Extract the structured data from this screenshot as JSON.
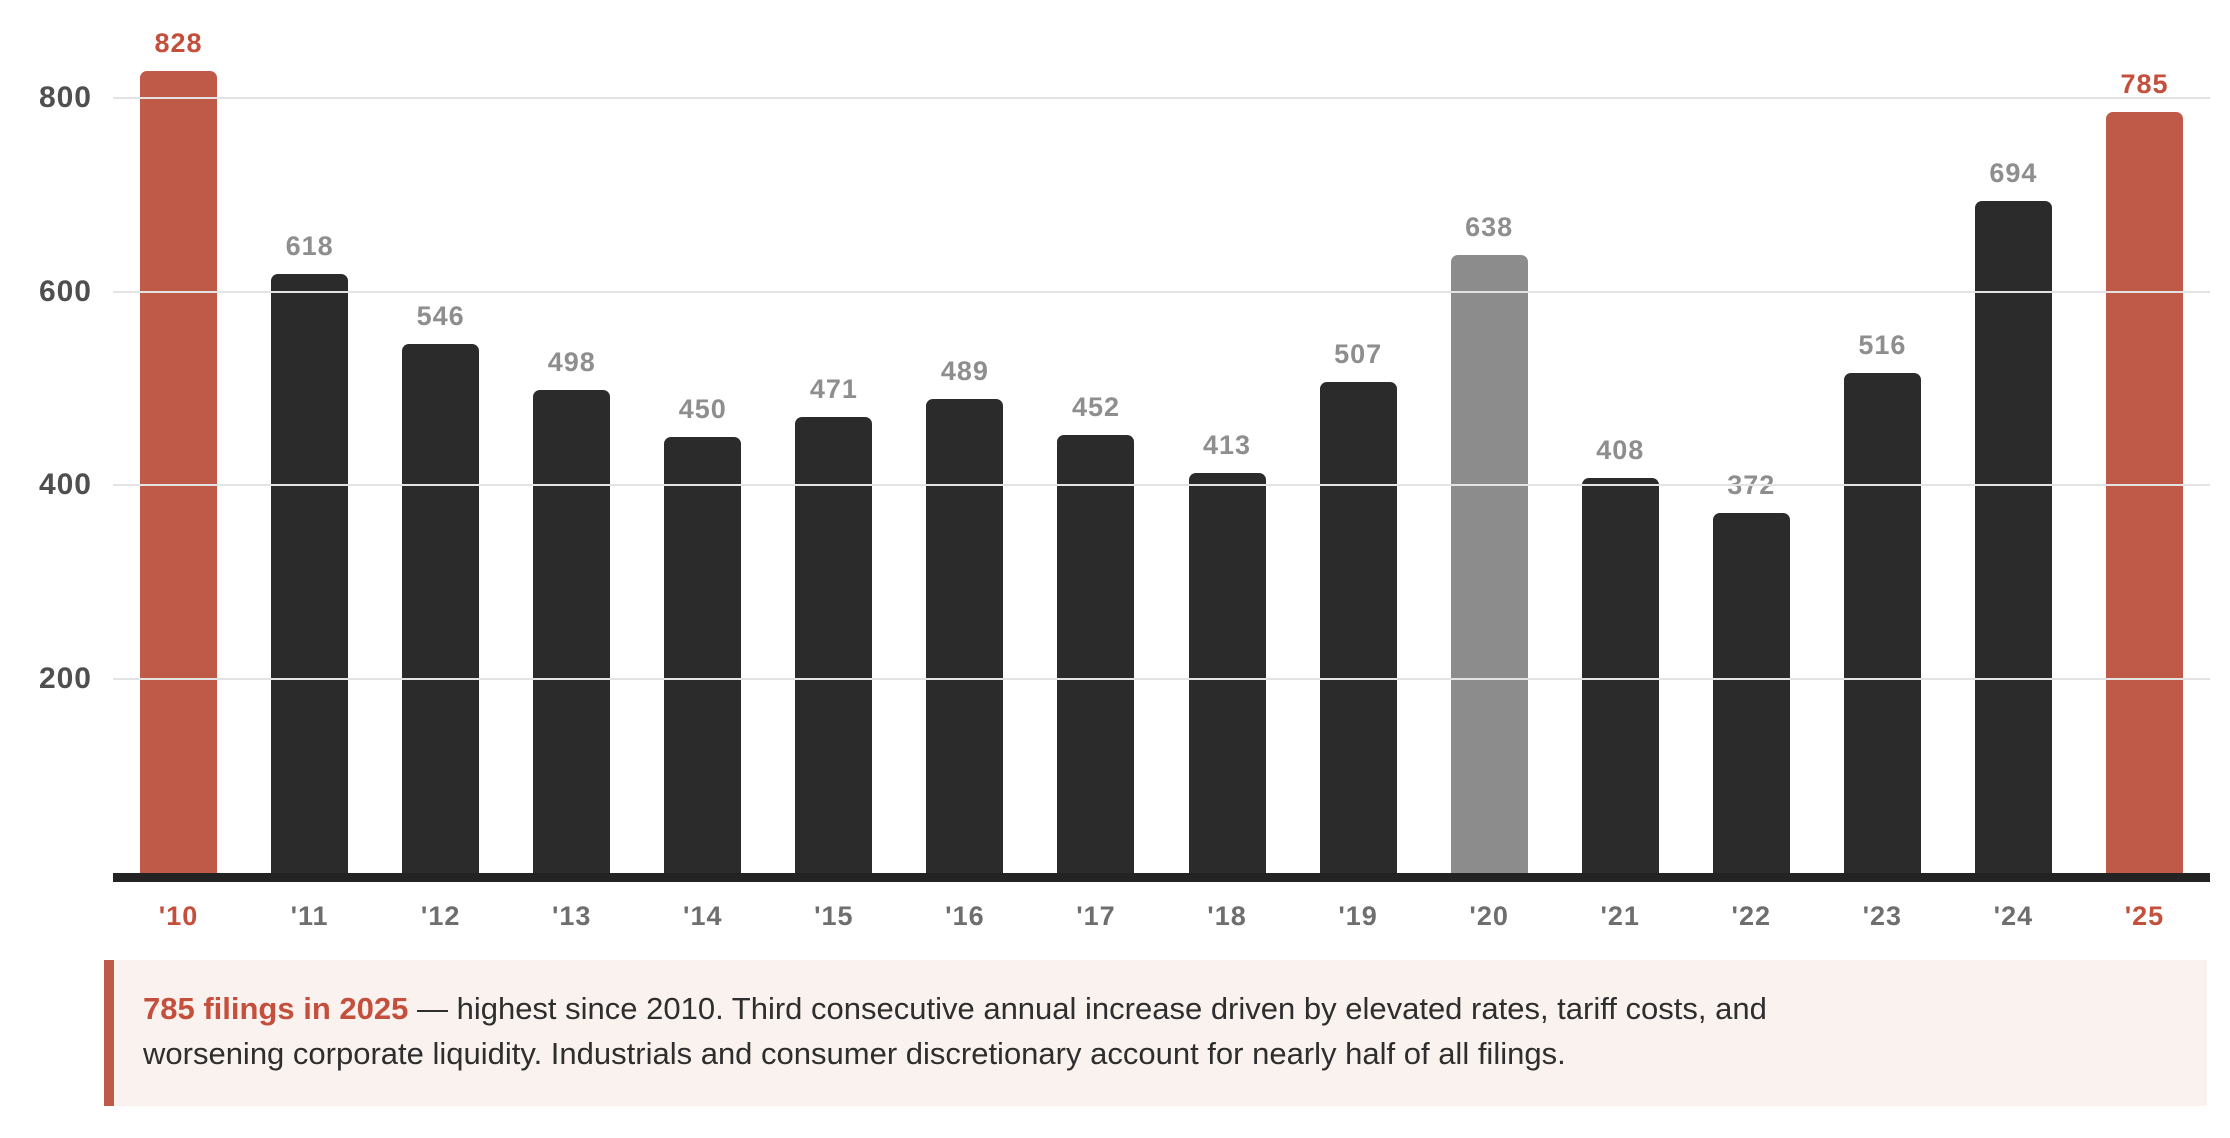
{
  "chart_data": {
    "type": "bar",
    "categories": [
      "'10",
      "'11",
      "'12",
      "'13",
      "'14",
      "'15",
      "'16",
      "'17",
      "'18",
      "'19",
      "'20",
      "'21",
      "'22",
      "'23",
      "'24",
      "'25"
    ],
    "values": [
      828,
      618,
      546,
      498,
      450,
      471,
      489,
      452,
      413,
      507,
      638,
      408,
      372,
      516,
      694,
      785
    ],
    "bar_roles": [
      "accent",
      "dark",
      "dark",
      "dark",
      "dark",
      "dark",
      "dark",
      "dark",
      "dark",
      "dark",
      "muted",
      "dark",
      "dark",
      "dark",
      "dark",
      "accent"
    ],
    "title": "",
    "xlabel": "",
    "ylabel": "",
    "ylim": [
      0,
      880
    ],
    "yticks": [
      200,
      400,
      600,
      800
    ],
    "grid": "horizontal",
    "legend": "none",
    "data_labels": true
  },
  "colors": {
    "accent_bar": "#C05A48",
    "accent_text": "#C34F3C",
    "bar_dark": "#2B2B2B",
    "bar_muted": "#8C8C8C",
    "label_gray": "#8E8E8E",
    "tick_gray": "#6E6E6E",
    "ytick_gray": "#4F4F4F",
    "axis": "#232323",
    "grid": "#E3E3E3",
    "caption_bg": "#FAF2EE",
    "caption_text": "#2E2E2E"
  },
  "caption": {
    "lead": "785 filings in 2025",
    "line1_rest": " — highest since 2010. Third consecutive annual increase driven by elevated rates, tariff costs, and",
    "line2": "worsening corporate liquidity. Industrials and consumer discretionary account for nearly half of all filings."
  }
}
